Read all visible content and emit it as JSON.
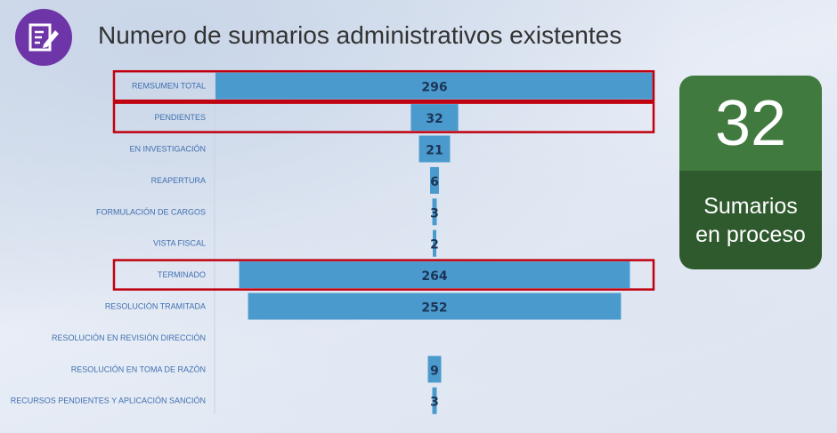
{
  "header": {
    "title": "Numero de sumarios administrativos existentes",
    "logo_icon": "form-edit-icon",
    "logo_color": "#6e35a8"
  },
  "kpi": {
    "value": "32",
    "label_line1": "Sumarios",
    "label_line2": "en proceso",
    "top_color": "#417a3e",
    "bottom_color": "#2f5a2e"
  },
  "chart_data": {
    "type": "bar",
    "orientation": "horizontal",
    "style": "funnel-centered",
    "title": "",
    "xlabel": "",
    "ylabel": "",
    "bar_color": "#4a9ace",
    "highlight_color": "#c0000e",
    "categories": [
      "REMSUMEN TOTAL",
      "PENDIENTES",
      "EN INVESTIGACIÓN",
      "REAPERTURA",
      "FORMULACIÓN DE CARGOS",
      "VISTA FISCAL",
      "TERMINADO",
      "RESOLUCIÓN TRAMITADA",
      "RESOLUCIÓN EN REVISIÓN DIRECCIÓN",
      "RESOLUCIÓN EN TOMA DE RAZÓN",
      "RECURSOS PENDIENTES Y APLICACIÓN SANCIÓN"
    ],
    "values": [
      296,
      32,
      21,
      6,
      3,
      2,
      264,
      252,
      null,
      9,
      3
    ],
    "highlighted": [
      "REMSUMEN TOTAL",
      "PENDIENTES",
      "TERMINADO"
    ]
  }
}
